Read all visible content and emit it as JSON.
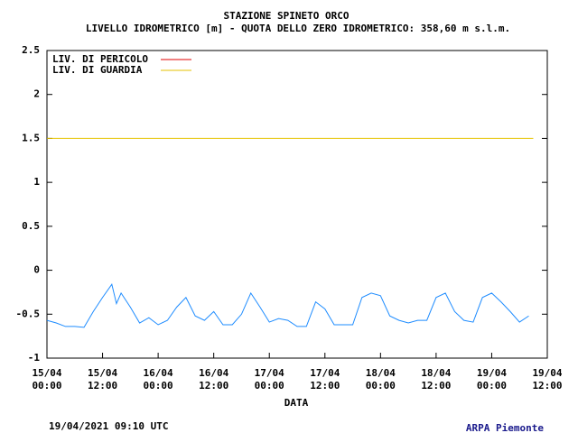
{
  "chart_data": {
    "type": "line",
    "title": "STAZIONE SPINETO ORCO",
    "subtitle": "LIVELLO IDROMETRICO [m] - QUOTA DELLO ZERO IDROMETRICO: 358,60  m s.l.m.",
    "xlabel": "DATA",
    "footer_left": "19/04/2021 09:10 UTC",
    "footer_right": "ARPA Piemonte",
    "x": [
      0,
      2,
      4,
      6,
      8,
      10,
      12,
      14,
      15,
      16,
      18,
      20,
      22,
      24,
      26,
      28,
      30,
      32,
      34,
      36,
      38,
      40,
      42,
      44,
      46,
      48,
      50,
      52,
      54,
      56,
      58,
      60,
      62,
      64,
      66,
      68,
      70,
      72,
      74,
      76,
      78,
      80,
      82,
      84,
      86,
      88,
      90,
      92,
      94,
      96,
      98,
      100,
      102,
      104
    ],
    "series": [
      {
        "name": "Livello",
        "color": "#1e8cff",
        "values": [
          -0.57,
          -0.6,
          -0.64,
          -0.64,
          -0.65,
          -0.47,
          -0.31,
          -0.16,
          -0.38,
          -0.26,
          -0.42,
          -0.6,
          -0.54,
          -0.62,
          -0.57,
          -0.42,
          -0.31,
          -0.52,
          -0.57,
          -0.47,
          -0.62,
          -0.62,
          -0.5,
          -0.26,
          -0.42,
          -0.59,
          -0.55,
          -0.57,
          -0.64,
          -0.64,
          -0.36,
          -0.44,
          -0.62,
          -0.62,
          -0.62,
          -0.31,
          -0.26,
          -0.29,
          -0.52,
          -0.57,
          -0.6,
          -0.57,
          -0.57,
          -0.31,
          -0.26,
          -0.47,
          -0.57,
          -0.59,
          -0.31,
          -0.26,
          -0.36,
          -0.47,
          -0.59,
          -0.52
        ]
      }
    ],
    "thresholds": [
      {
        "name": "LIV. DI PERICOLO",
        "color": "#e00000"
      },
      {
        "name": "LIV. DI GUARDIA",
        "color": "#e6c200",
        "value": 1.5
      }
    ],
    "xlim": [
      0,
      108
    ],
    "xticks": [
      {
        "value": 0,
        "label": "15/04 00:00"
      },
      {
        "value": 12,
        "label": "15/04 12:00"
      },
      {
        "value": 24,
        "label": "16/04 00:00"
      },
      {
        "value": 36,
        "label": "16/04 12:00"
      },
      {
        "value": 48,
        "label": "17/04 00:00"
      },
      {
        "value": 60,
        "label": "17/04 12:00"
      },
      {
        "value": 72,
        "label": "18/04 00:00"
      },
      {
        "value": 84,
        "label": "18/04 12:00"
      },
      {
        "value": 96,
        "label": "19/04 00:00"
      },
      {
        "value": 108,
        "label": "19/04 12:00"
      }
    ],
    "ylim": [
      -1,
      2.5
    ],
    "yticks": [
      -1,
      -0.5,
      0,
      0.5,
      1,
      1.5,
      2,
      2.5
    ]
  }
}
